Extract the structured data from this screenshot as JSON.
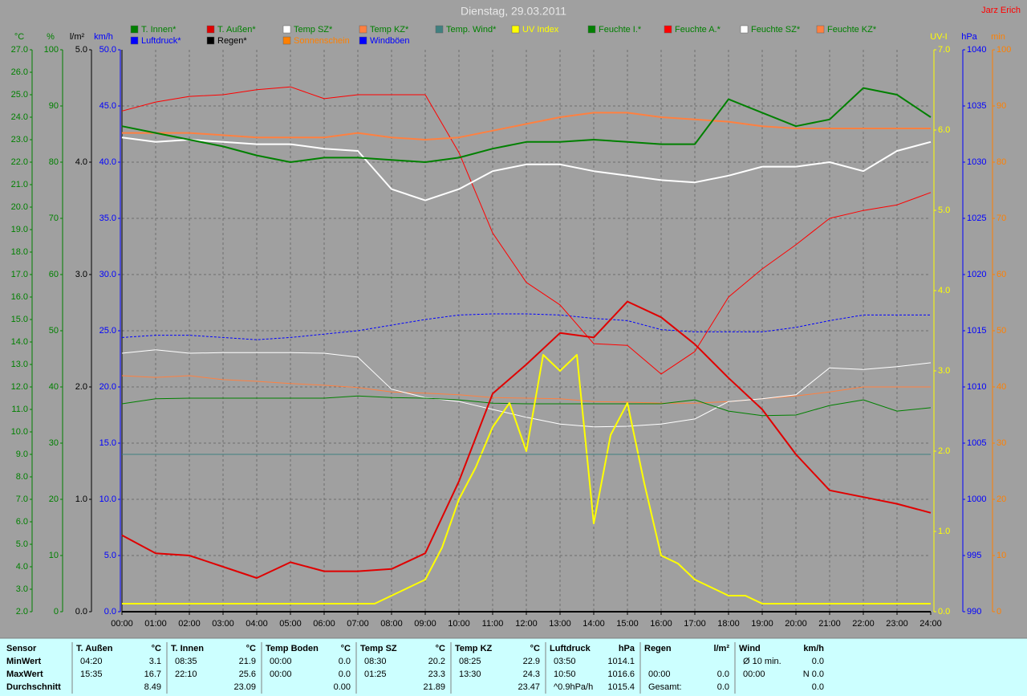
{
  "chart_data": {
    "type": "line",
    "title": "Dienstag, 29.03.2011",
    "author": "Jarz Erich",
    "xlim": [
      0,
      24
    ],
    "x": [
      0,
      1,
      2,
      3,
      4,
      5,
      6,
      7,
      8,
      9,
      10,
      11,
      12,
      13,
      14,
      15,
      16,
      17,
      18,
      19,
      20,
      21,
      22,
      23,
      24
    ],
    "xticks": [
      {
        "value": 0,
        "label": "00:00"
      },
      {
        "value": 1,
        "label": "01:00"
      },
      {
        "value": 2,
        "label": "02:00"
      },
      {
        "value": 3,
        "label": "03:00"
      },
      {
        "value": 4,
        "label": "04:00"
      },
      {
        "value": 5,
        "label": "05:00"
      },
      {
        "value": 6,
        "label": "06:00"
      },
      {
        "value": 7,
        "label": "07:00"
      },
      {
        "value": 8,
        "label": "08:00"
      },
      {
        "value": 9,
        "label": "09:00"
      },
      {
        "value": 10,
        "label": "10:00"
      },
      {
        "value": 11,
        "label": "11:00"
      },
      {
        "value": 12,
        "label": "12:00"
      },
      {
        "value": 13,
        "label": "13:00"
      },
      {
        "value": 14,
        "label": "14:00"
      },
      {
        "value": 15,
        "label": "15:00"
      },
      {
        "value": 16,
        "label": "16:00"
      },
      {
        "value": 17,
        "label": "17:00"
      },
      {
        "value": 18,
        "label": "18:00"
      },
      {
        "value": 19,
        "label": "19:00"
      },
      {
        "value": 20,
        "label": "20:00"
      },
      {
        "value": 21,
        "label": "21:00"
      },
      {
        "value": 22,
        "label": "22:00"
      },
      {
        "value": 23,
        "label": "23:00"
      },
      {
        "value": 24,
        "label": "24:00"
      }
    ],
    "grid": true,
    "grid_axis": 1,
    "axes": [
      {
        "name": "°C",
        "side": "left",
        "color": "#008000",
        "lim": [
          2,
          27
        ],
        "ticks": [
          {
            "value": 2,
            "label": "2.0"
          },
          {
            "value": 3,
            "label": "3.0"
          },
          {
            "value": 4,
            "label": "4.0"
          },
          {
            "value": 5,
            "label": "5.0"
          },
          {
            "value": 6,
            "label": "6.0"
          },
          {
            "value": 7,
            "label": "7.0"
          },
          {
            "value": 8,
            "label": "8.0"
          },
          {
            "value": 9,
            "label": "9.0"
          },
          {
            "value": 10,
            "label": "10.0"
          },
          {
            "value": 11,
            "label": "11.0"
          },
          {
            "value": 12,
            "label": "12.0"
          },
          {
            "value": 13,
            "label": "13.0"
          },
          {
            "value": 14,
            "label": "14.0"
          },
          {
            "value": 15,
            "label": "15.0"
          },
          {
            "value": 16,
            "label": "16.0"
          },
          {
            "value": 17,
            "label": "17.0"
          },
          {
            "value": 18,
            "label": "18.0"
          },
          {
            "value": 19,
            "label": "19.0"
          },
          {
            "value": 20,
            "label": "20.0"
          },
          {
            "value": 21,
            "label": "21.0"
          },
          {
            "value": 22,
            "label": "22.0"
          },
          {
            "value": 23,
            "label": "23.0"
          },
          {
            "value": 24,
            "label": "24.0"
          },
          {
            "value": 25,
            "label": "25.0"
          },
          {
            "value": 26,
            "label": "26.0"
          },
          {
            "value": 27,
            "label": "27.0"
          }
        ]
      },
      {
        "name": "%",
        "side": "left",
        "color": "#008000",
        "lim": [
          0,
          100
        ],
        "ticks": [
          0,
          10,
          20,
          30,
          40,
          50,
          60,
          70,
          80,
          90,
          100
        ]
      },
      {
        "name": "l/m²",
        "side": "left",
        "color": "#000000",
        "lim": [
          0,
          5
        ],
        "ticks": [
          {
            "value": 0,
            "label": "0.0"
          },
          {
            "value": 1,
            "label": "1.0"
          },
          {
            "value": 2,
            "label": "2.0"
          },
          {
            "value": 3,
            "label": "3.0"
          },
          {
            "value": 4,
            "label": "4.0"
          },
          {
            "value": 5,
            "label": "5.0"
          }
        ]
      },
      {
        "name": "km/h",
        "side": "left",
        "color": "#0000ff",
        "lim": [
          0,
          50
        ],
        "ticks": [
          {
            "value": 0,
            "label": "0.0"
          },
          {
            "value": 5,
            "label": "5.0"
          },
          {
            "value": 10,
            "label": "10.0"
          },
          {
            "value": 15,
            "label": "15.0"
          },
          {
            "value": 20,
            "label": "20.0"
          },
          {
            "value": 25,
            "label": "25.0"
          },
          {
            "value": 30,
            "label": "30.0"
          },
          {
            "value": 35,
            "label": "35.0"
          },
          {
            "value": 40,
            "label": "40.0"
          },
          {
            "value": 45,
            "label": "45.0"
          },
          {
            "value": 50,
            "label": "50.0"
          }
        ]
      },
      {
        "name": "UV-I",
        "side": "right",
        "color": "#ffff00",
        "lim": [
          0,
          7
        ],
        "ticks": [
          {
            "value": 0,
            "label": "0.0"
          },
          {
            "value": 1,
            "label": "1.0"
          },
          {
            "value": 2,
            "label": "2.0"
          },
          {
            "value": 3,
            "label": "3.0"
          },
          {
            "value": 4,
            "label": "4.0"
          },
          {
            "value": 5,
            "label": "5.0"
          },
          {
            "value": 6,
            "label": "6.0"
          },
          {
            "value": 7,
            "label": "7.0"
          }
        ]
      },
      {
        "name": "hPa",
        "side": "right",
        "color": "#0000ff",
        "lim": [
          990,
          1040
        ],
        "ticks": [
          990,
          995,
          1000,
          1005,
          1010,
          1015,
          1020,
          1025,
          1030,
          1035,
          1040
        ]
      },
      {
        "name": "min",
        "side": "right",
        "color": "#ff8000",
        "lim": [
          0,
          100
        ],
        "ticks": [
          0,
          10,
          20,
          30,
          40,
          50,
          60,
          70,
          80,
          90,
          100
        ]
      }
    ],
    "series": [
      {
        "name": "T. Innen*",
        "color": "#008000",
        "axis": 0,
        "line_width": 2,
        "values": [
          23.6,
          23.3,
          23.0,
          22.7,
          22.3,
          22.0,
          22.2,
          22.2,
          22.1,
          22.0,
          22.2,
          22.6,
          22.9,
          22.9,
          23.0,
          22.9,
          22.8,
          22.8,
          24.8,
          24.2,
          23.6,
          23.9,
          25.3,
          25.0,
          24.0
        ]
      },
      {
        "name": "T. Außen*",
        "color": "#e00000",
        "axis": 0,
        "line_width": 2,
        "values": [
          5.4,
          4.6,
          4.5,
          4.0,
          3.5,
          4.2,
          3.8,
          3.8,
          3.9,
          4.6,
          7.8,
          11.7,
          13.0,
          14.4,
          14.2,
          15.8,
          15.1,
          13.9,
          12.4,
          11.0,
          9.0,
          7.4,
          7.1,
          6.8,
          6.4
        ]
      },
      {
        "name": "Temp SZ*",
        "color": "#ffffff",
        "axis": 0,
        "line_width": 2,
        "values": [
          23.1,
          22.9,
          23.0,
          22.9,
          22.8,
          22.8,
          22.6,
          22.5,
          20.8,
          20.3,
          20.8,
          21.6,
          21.9,
          21.9,
          21.6,
          21.4,
          21.2,
          21.1,
          21.4,
          21.8,
          21.8,
          22.0,
          21.6,
          22.5,
          22.9
        ]
      },
      {
        "name": "Temp KZ*",
        "color": "#ff8040",
        "axis": 0,
        "line_width": 2,
        "values": [
          23.3,
          23.3,
          23.3,
          23.2,
          23.1,
          23.1,
          23.1,
          23.3,
          23.1,
          23.0,
          23.1,
          23.4,
          23.7,
          24.0,
          24.2,
          24.2,
          24.0,
          23.9,
          23.8,
          23.6,
          23.5,
          23.5,
          23.5,
          23.5,
          23.5
        ]
      },
      {
        "name": "Temp. Wind*",
        "color": "#408080",
        "axis": 0,
        "line_width": 1,
        "values": [
          9.0,
          9.0,
          9.0,
          9.0,
          9.0,
          9.0,
          9.0,
          9.0,
          9.0,
          9.0,
          9.0,
          9.0,
          9.0,
          9.0,
          9.0,
          9.0,
          9.0,
          9.0,
          9.0,
          9.0,
          9.0,
          9.0,
          9.0,
          9.0,
          9.0
        ]
      },
      {
        "name": "UV Index",
        "color": "#ffff00",
        "axis": 4,
        "line_width": 2,
        "x": [
          0,
          0.5,
          1,
          1.5,
          2,
          2.5,
          3,
          3.5,
          4,
          4.5,
          5,
          5.5,
          6,
          6.5,
          7,
          7.5,
          8,
          8.5,
          9,
          9.5,
          10,
          10.5,
          11,
          11.5,
          12,
          12.5,
          13,
          13.5,
          14,
          14.5,
          15,
          15.5,
          16,
          16.5,
          17,
          17.5,
          18,
          18.5,
          19,
          19.5,
          20,
          20.5,
          21,
          21.5,
          22,
          22.5,
          23,
          23.5,
          24
        ],
        "values": [
          0.1,
          0.1,
          0.1,
          0.1,
          0.1,
          0.1,
          0.1,
          0.1,
          0.1,
          0.1,
          0.1,
          0.1,
          0.1,
          0.1,
          0.1,
          0.1,
          0.2,
          0.3,
          0.4,
          0.8,
          1.4,
          1.8,
          2.3,
          2.6,
          2.0,
          3.2,
          3.0,
          3.2,
          1.1,
          2.2,
          2.6,
          1.6,
          0.7,
          0.6,
          0.4,
          0.3,
          0.2,
          0.2,
          0.1,
          0.1,
          0.1,
          0.1,
          0.1,
          0.1,
          0.1,
          0.1,
          0.1,
          0.1,
          0.1
        ]
      },
      {
        "name": "Feuchte I.*",
        "color": "#008000",
        "axis": 1,
        "line_width": 1,
        "values": [
          37.0,
          37.9,
          38.0,
          38.0,
          38.0,
          38.0,
          38.0,
          38.4,
          38.1,
          38.0,
          37.7,
          37.1,
          37.0,
          37.0,
          37.0,
          37.0,
          37.0,
          37.7,
          35.7,
          34.9,
          35.0,
          36.7,
          37.7,
          35.7,
          36.3
        ]
      },
      {
        "name": "Feuchte A.*",
        "color": "#ff0000",
        "axis": 1,
        "line_width": 1,
        "values": [
          89.1,
          90.7,
          91.7,
          92.0,
          92.9,
          93.4,
          91.3,
          92.0,
          92.0,
          92.0,
          81.7,
          67.4,
          58.6,
          54.6,
          47.7,
          47.4,
          42.3,
          46.3,
          56.0,
          61.0,
          65.3,
          70.0,
          71.4,
          72.4,
          74.6
        ]
      },
      {
        "name": "Feuchte SZ*",
        "color": "#ffffff",
        "axis": 1,
        "line_width": 1,
        "values": [
          46.0,
          46.6,
          46.0,
          46.1,
          46.1,
          46.1,
          46.0,
          45.3,
          39.6,
          38.1,
          37.4,
          36.0,
          34.6,
          33.4,
          32.9,
          33.0,
          33.4,
          34.3,
          37.4,
          37.9,
          38.6,
          43.4,
          43.1,
          43.6,
          44.3
        ]
      },
      {
        "name": "Feuchte KZ*",
        "color": "#ff8040",
        "axis": 1,
        "line_width": 1,
        "values": [
          42.0,
          41.7,
          42.0,
          41.3,
          41.0,
          40.6,
          40.3,
          39.9,
          39.1,
          38.9,
          38.6,
          38.1,
          38.0,
          37.9,
          37.4,
          37.3,
          37.1,
          37.1,
          37.4,
          37.9,
          38.4,
          39.1,
          40.0,
          40.0,
          40.0
        ]
      },
      {
        "name": "Luftdruck*",
        "color": "#0000ff",
        "axis": 5,
        "line_width": 1,
        "dashed": true,
        "values": [
          1014.4,
          1014.6,
          1014.6,
          1014.4,
          1014.2,
          1014.4,
          1014.7,
          1015.0,
          1015.5,
          1016.0,
          1016.4,
          1016.5,
          1016.5,
          1016.4,
          1016.1,
          1015.9,
          1015.1,
          1014.9,
          1014.9,
          1014.9,
          1015.3,
          1015.9,
          1016.4,
          1016.4,
          1016.4
        ]
      },
      {
        "name": "Regen*",
        "color": "#000000",
        "axis": 2,
        "line_width": 2,
        "values": [
          0,
          0,
          0,
          0,
          0,
          0,
          0,
          0,
          0,
          0,
          0,
          0,
          0,
          0,
          0,
          0,
          0,
          0,
          0,
          0,
          0,
          0,
          0,
          0,
          0
        ]
      },
      {
        "name": "Sonnenschein",
        "color": "#ff8000",
        "axis": 6,
        "line_width": 1,
        "values": [
          0,
          0,
          0,
          0,
          0,
          0,
          0,
          0,
          0,
          0,
          0,
          0,
          0,
          0,
          0,
          0,
          0,
          0,
          0,
          0,
          0,
          0,
          0,
          0,
          0
        ]
      },
      {
        "name": "Windböen",
        "color": "#0000ff",
        "axis": 3,
        "line_width": 1,
        "values": [
          0,
          0,
          0,
          0,
          0,
          0,
          0,
          0,
          0,
          0,
          0,
          0,
          0,
          0,
          0,
          0,
          0,
          0,
          0,
          0,
          0,
          0,
          0,
          0,
          0
        ]
      }
    ]
  },
  "stats_table": {
    "row_labels": [
      "Sensor",
      "MinWert",
      "MaxWert",
      "Durchschnitt"
    ],
    "columns": [
      {
        "name": "T. Außen",
        "unit": "°C",
        "rows": [
          [
            "04:20",
            "3.1"
          ],
          [
            "15:35",
            "16.7"
          ],
          [
            null,
            "8.49"
          ]
        ]
      },
      {
        "name": "T. Innen",
        "unit": "°C",
        "rows": [
          [
            "08:35",
            "21.9"
          ],
          [
            "22:10",
            "25.6"
          ],
          [
            null,
            "23.09"
          ]
        ]
      },
      {
        "name": "Temp Boden",
        "unit": "°C",
        "rows": [
          [
            "00:00",
            "0.0"
          ],
          [
            "00:00",
            "0.0"
          ],
          [
            null,
            "0.00"
          ]
        ]
      },
      {
        "name": "Temp SZ",
        "unit": "°C",
        "rows": [
          [
            "08:30",
            "20.2"
          ],
          [
            "01:25",
            "23.3"
          ],
          [
            null,
            "21.89"
          ]
        ]
      },
      {
        "name": "Temp KZ",
        "unit": "°C",
        "rows": [
          [
            "08:25",
            "22.9"
          ],
          [
            "13:30",
            "24.3"
          ],
          [
            null,
            "23.47"
          ]
        ]
      },
      {
        "name": "Luftdruck",
        "unit": "hPa",
        "rows": [
          [
            "03:50",
            "1014.1"
          ],
          [
            "10:50",
            "1016.6"
          ],
          [
            "^0.9hPa/h",
            "1015.4"
          ]
        ]
      },
      {
        "name": "Regen",
        "unit": "l/m²",
        "rows": [
          [
            null,
            null
          ],
          [
            "00:00",
            "0.0"
          ],
          [
            "Gesamt:",
            "0.0"
          ]
        ]
      },
      {
        "name": "Wind",
        "unit": "km/h",
        "rows": [
          [
            "Ø 10 min.",
            "0.0"
          ],
          [
            "00:00",
            "N 0.0"
          ],
          [
            null,
            "0.0"
          ]
        ]
      }
    ]
  }
}
